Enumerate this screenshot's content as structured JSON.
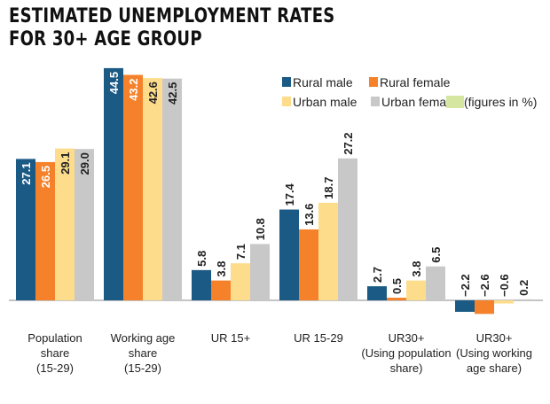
{
  "title_lines": [
    "ESTIMATED UNEMPLOYMENT RATES",
    "FOR 30+ AGE GROUP"
  ],
  "chart_data": {
    "type": "bar",
    "title": "ESTIMATED UNEMPLOYMENT RATES FOR 30+ AGE GROUP",
    "note": "(figures in %)",
    "categories": [
      [
        "Population",
        "share",
        "(15-29)"
      ],
      [
        "Working age",
        "share",
        "(15-29)"
      ],
      [
        "UR 15+"
      ],
      [
        "UR 15-29"
      ],
      [
        "UR30+",
        "(Using population",
        "share)"
      ],
      [
        "UR30+",
        "(Using working",
        "age share)"
      ]
    ],
    "series": [
      {
        "name": "Rural male",
        "color": "#1b5a84",
        "values": [
          27.1,
          44.5,
          5.8,
          17.4,
          2.7,
          -2.2
        ]
      },
      {
        "name": "Rural female",
        "color": "#f5822a",
        "values": [
          26.5,
          43.2,
          3.8,
          13.6,
          0.5,
          -2.6
        ]
      },
      {
        "name": "Urban male",
        "color": "#fddc8c",
        "values": [
          29.1,
          42.6,
          7.1,
          18.7,
          3.8,
          -0.6
        ]
      },
      {
        "name": "Urban female",
        "color": "#c8c8c8",
        "values": [
          29.0,
          42.5,
          10.8,
          27.2,
          6.5,
          0.2
        ]
      }
    ],
    "note_color": "#d4e6a0",
    "ylim": [
      -3,
      45
    ],
    "grid": false,
    "legend_position": "top-right"
  }
}
